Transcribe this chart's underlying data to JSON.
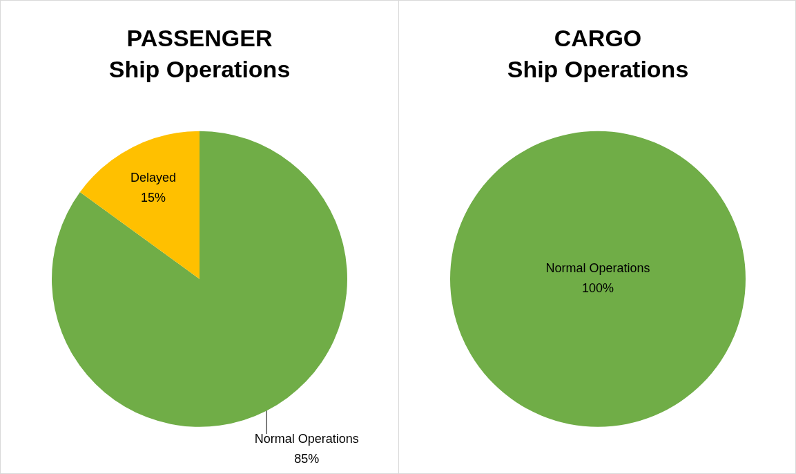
{
  "chart_data": [
    {
      "type": "pie",
      "title": "PASSENGER",
      "subtitle": "Ship Operations",
      "categories": [
        "Normal Operations",
        "Delayed"
      ],
      "values": [
        85,
        15
      ],
      "value_labels": [
        "85%",
        "15%"
      ],
      "colors": [
        "#70ad47",
        "#ffc000"
      ],
      "legend": false
    },
    {
      "type": "pie",
      "title": "CARGO",
      "subtitle": "Ship Operations",
      "categories": [
        "Normal Operations"
      ],
      "values": [
        100
      ],
      "value_labels": [
        "100%"
      ],
      "colors": [
        "#70ad47"
      ],
      "legend": false
    }
  ]
}
